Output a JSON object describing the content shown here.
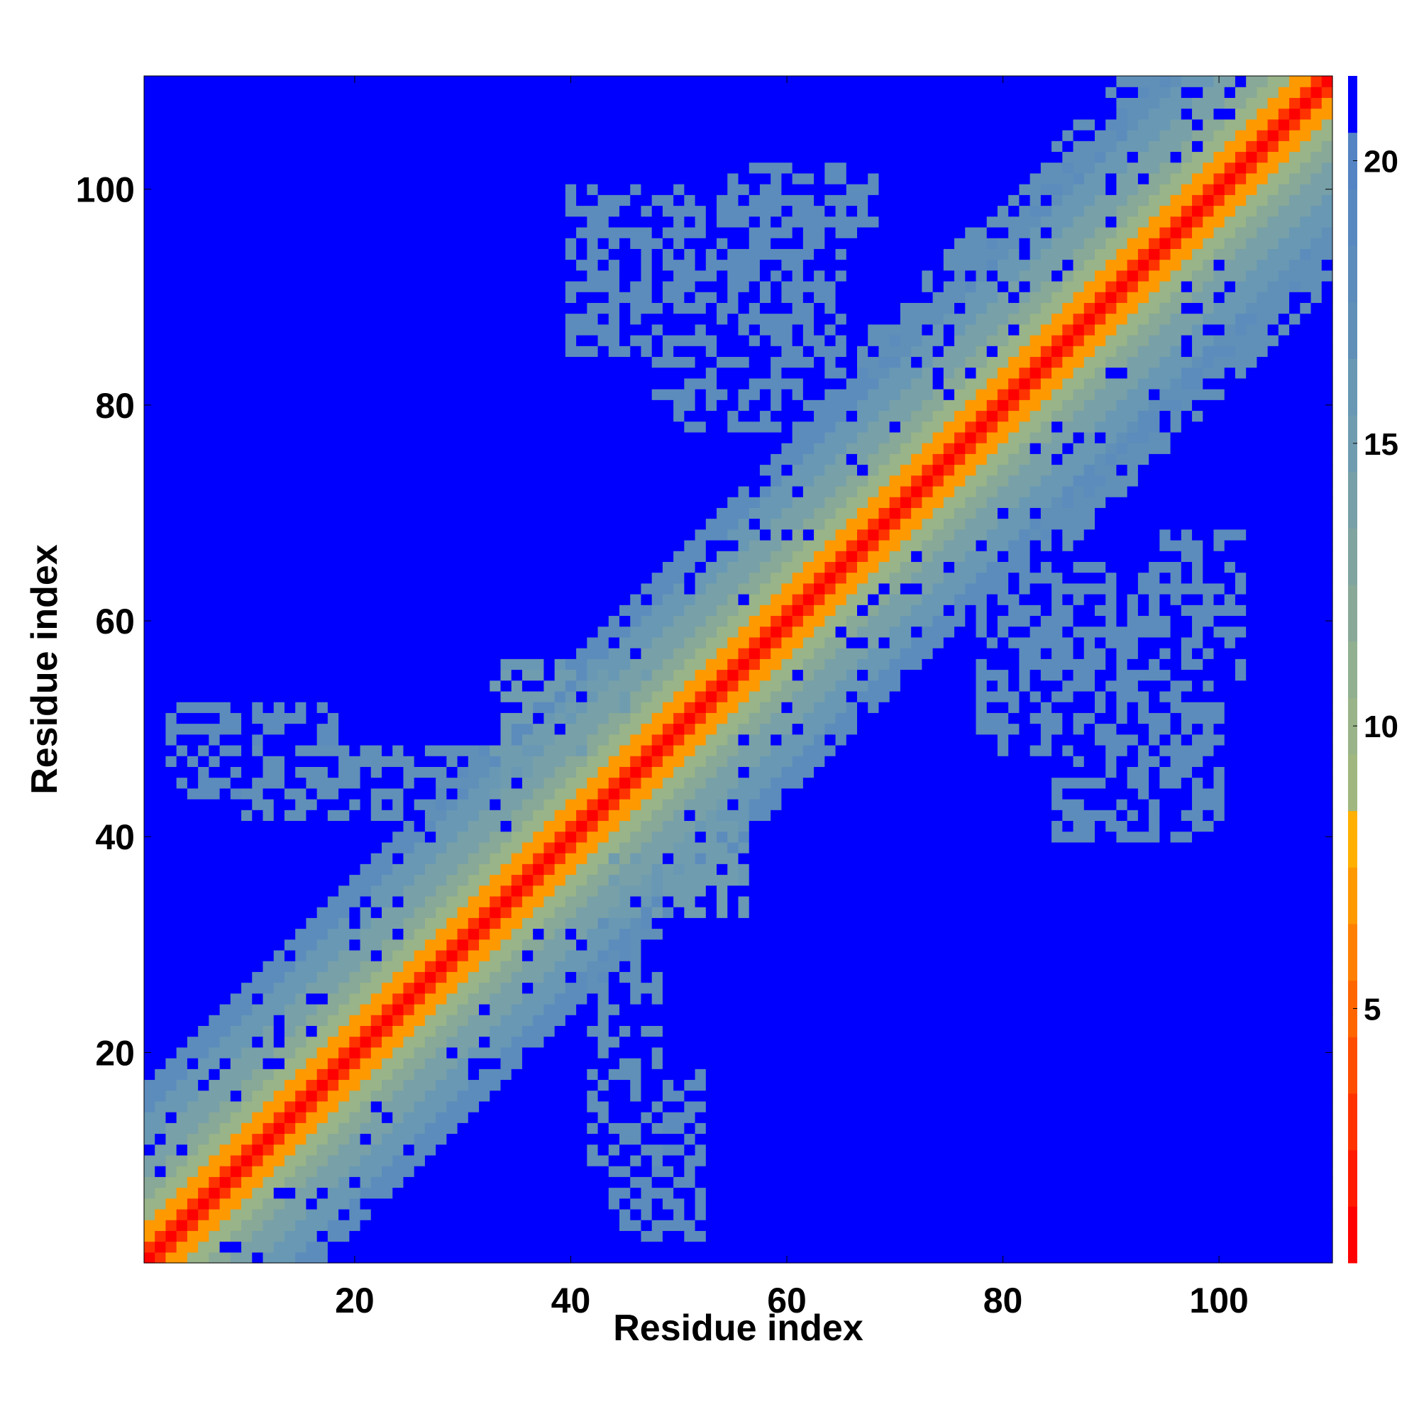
{
  "chart_data": {
    "type": "heatmap",
    "title": "",
    "xlabel": "Residue index",
    "ylabel": "Residue index",
    "xlim": [
      0.5,
      110.5
    ],
    "ylim": [
      0.5,
      110.5
    ],
    "x_ticks": [
      20,
      40,
      60,
      80,
      100
    ],
    "y_ticks": [
      20,
      40,
      60,
      80,
      100
    ],
    "colorbar": {
      "range": [
        0.5,
        21.5
      ],
      "ticks": [
        5,
        10,
        15,
        20
      ],
      "position": "right",
      "bands": [
        {
          "upto": 1,
          "color": "#ff0000"
        },
        {
          "upto": 2,
          "color": "#ff1a00"
        },
        {
          "upto": 3,
          "color": "#ff3300"
        },
        {
          "upto": 4,
          "color": "#ff4d00"
        },
        {
          "upto": 5,
          "color": "#ff6600"
        },
        {
          "upto": 6,
          "color": "#ff8000"
        },
        {
          "upto": 7,
          "color": "#ff9900"
        },
        {
          "upto": 8,
          "color": "#ffb000"
        },
        {
          "upto": 9,
          "color": "#a0b880"
        },
        {
          "upto": 10,
          "color": "#98b488"
        },
        {
          "upto": 11,
          "color": "#90b090"
        },
        {
          "upto": 12,
          "color": "#88a898"
        },
        {
          "upto": 13,
          "color": "#80a4a0"
        },
        {
          "upto": 14,
          "color": "#78a0a8"
        },
        {
          "upto": 15,
          "color": "#709cb0"
        },
        {
          "upto": 16,
          "color": "#6898b4"
        },
        {
          "upto": 17,
          "color": "#6090b8"
        },
        {
          "upto": 18,
          "color": "#5c8cbc"
        },
        {
          "upto": 19,
          "color": "#5888c0"
        },
        {
          "upto": 20,
          "color": "#5484c4"
        },
        {
          "upto": 21.5,
          "color": "#0000ff"
        }
      ]
    },
    "grid": false,
    "value_model": {
      "description_of_data": "symmetric residue-residue distance map, Å",
      "diagonal_value": 1,
      "background_value": 21,
      "contact_regions": [
        {
          "x": [
            10,
            50
          ],
          "y": [
            42,
            48
          ],
          "value": 17
        },
        {
          "x": [
            3,
            18
          ],
          "y": [
            47,
            52
          ],
          "value": 18
        },
        {
          "x": [
            44,
            52
          ],
          "y": [
            4,
            18
          ],
          "value": 18
        },
        {
          "x": [
            40,
            65
          ],
          "y": [
            85,
            100
          ],
          "value": 18
        },
        {
          "x": [
            78,
            100
          ],
          "y": [
            50,
            65
          ],
          "value": 18
        },
        {
          "x": [
            85,
            100
          ],
          "y": [
            40,
            52
          ],
          "value": 18
        },
        {
          "x": [
            55,
            68
          ],
          "y": [
            95,
            102
          ],
          "value": 18
        },
        {
          "x": [
            48,
            62
          ],
          "y": [
            80,
            90
          ],
          "value": 18
        },
        {
          "x": [
            33,
            48
          ],
          "y": [
            38,
            56
          ],
          "value": 16
        },
        {
          "x": [
            43,
            55
          ],
          "y": [
            33,
            47
          ],
          "value": 15
        }
      ]
    }
  }
}
